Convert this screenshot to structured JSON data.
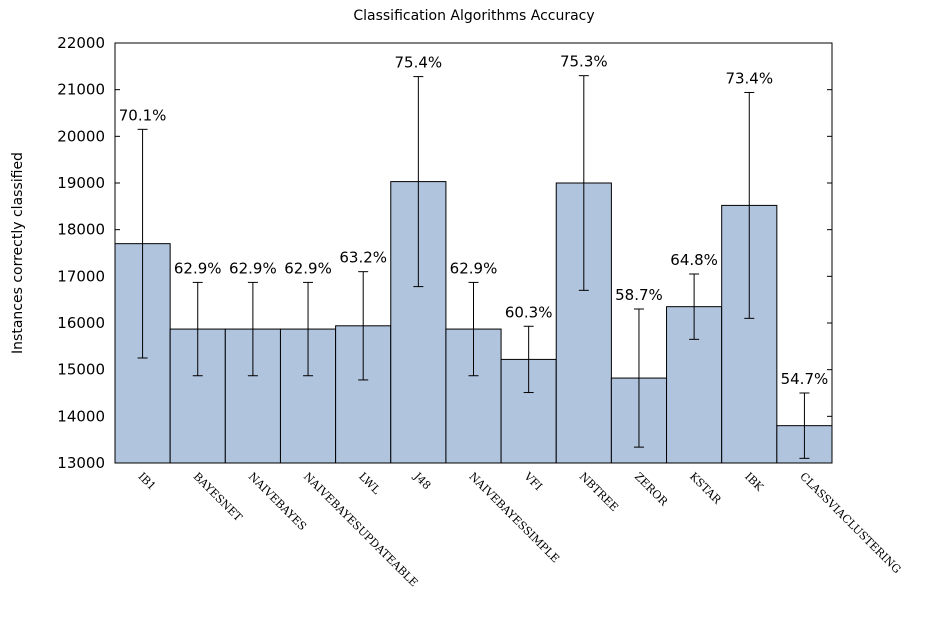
{
  "chart_data": {
    "type": "bar",
    "title": "Classification Algorithms Accuracy",
    "y_label": "Instances correctly classified",
    "categories": [
      "IB1",
      "BAYESNET",
      "NAIVEBAYES",
      "NAIVEBAYESUPDATEABLE",
      "LWL",
      "J48",
      "NAIVEBAYESSIMPLE",
      "VFI",
      "NBTREE",
      "ZEROR",
      "KSTAR",
      "IBK",
      "CLASSVIACLUSTERING"
    ],
    "values": [
      17700,
      15870,
      15870,
      15870,
      15940,
      19030,
      15870,
      15220,
      19000,
      14820,
      16350,
      18520,
      13800
    ],
    "errors": [
      2450,
      1000,
      1000,
      1000,
      1160,
      2250,
      1000,
      710,
      2300,
      1480,
      700,
      2420,
      700
    ],
    "annotations": [
      "70.1%",
      "62.9%",
      "62.9%",
      "62.9%",
      "63.2%",
      "75.4%",
      "62.9%",
      "60.3%",
      "75.3%",
      "58.7%",
      "64.8%",
      "73.4%",
      "54.7%"
    ],
    "color": "#b0c4de",
    "ylim": [
      13000,
      22000
    ],
    "yticks": [
      13000,
      14000,
      15000,
      16000,
      17000,
      18000,
      19000,
      20000,
      21000,
      22000
    ]
  }
}
